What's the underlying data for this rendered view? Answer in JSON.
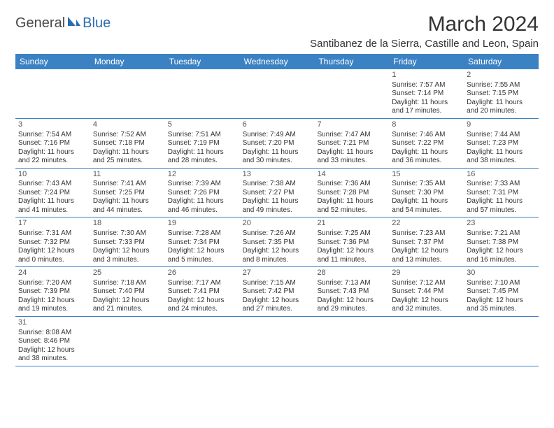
{
  "brand": {
    "general": "General",
    "blue": "Blue"
  },
  "header": {
    "title": "March 2024",
    "location": "Santibanez de la Sierra, Castille and Leon, Spain"
  },
  "colors": {
    "header_bg": "#3b82c4",
    "header_text": "#ffffff",
    "border": "#3b82c4",
    "text": "#333333"
  },
  "dayheads": [
    "Sunday",
    "Monday",
    "Tuesday",
    "Wednesday",
    "Thursday",
    "Friday",
    "Saturday"
  ],
  "weeks": [
    [
      null,
      null,
      null,
      null,
      null,
      {
        "num": "1",
        "sunrise": "Sunrise: 7:57 AM",
        "sunset": "Sunset: 7:14 PM",
        "daylight": "Daylight: 11 hours and 17 minutes."
      },
      {
        "num": "2",
        "sunrise": "Sunrise: 7:55 AM",
        "sunset": "Sunset: 7:15 PM",
        "daylight": "Daylight: 11 hours and 20 minutes."
      }
    ],
    [
      {
        "num": "3",
        "sunrise": "Sunrise: 7:54 AM",
        "sunset": "Sunset: 7:16 PM",
        "daylight": "Daylight: 11 hours and 22 minutes."
      },
      {
        "num": "4",
        "sunrise": "Sunrise: 7:52 AM",
        "sunset": "Sunset: 7:18 PM",
        "daylight": "Daylight: 11 hours and 25 minutes."
      },
      {
        "num": "5",
        "sunrise": "Sunrise: 7:51 AM",
        "sunset": "Sunset: 7:19 PM",
        "daylight": "Daylight: 11 hours and 28 minutes."
      },
      {
        "num": "6",
        "sunrise": "Sunrise: 7:49 AM",
        "sunset": "Sunset: 7:20 PM",
        "daylight": "Daylight: 11 hours and 30 minutes."
      },
      {
        "num": "7",
        "sunrise": "Sunrise: 7:47 AM",
        "sunset": "Sunset: 7:21 PM",
        "daylight": "Daylight: 11 hours and 33 minutes."
      },
      {
        "num": "8",
        "sunrise": "Sunrise: 7:46 AM",
        "sunset": "Sunset: 7:22 PM",
        "daylight": "Daylight: 11 hours and 36 minutes."
      },
      {
        "num": "9",
        "sunrise": "Sunrise: 7:44 AM",
        "sunset": "Sunset: 7:23 PM",
        "daylight": "Daylight: 11 hours and 38 minutes."
      }
    ],
    [
      {
        "num": "10",
        "sunrise": "Sunrise: 7:43 AM",
        "sunset": "Sunset: 7:24 PM",
        "daylight": "Daylight: 11 hours and 41 minutes."
      },
      {
        "num": "11",
        "sunrise": "Sunrise: 7:41 AM",
        "sunset": "Sunset: 7:25 PM",
        "daylight": "Daylight: 11 hours and 44 minutes."
      },
      {
        "num": "12",
        "sunrise": "Sunrise: 7:39 AM",
        "sunset": "Sunset: 7:26 PM",
        "daylight": "Daylight: 11 hours and 46 minutes."
      },
      {
        "num": "13",
        "sunrise": "Sunrise: 7:38 AM",
        "sunset": "Sunset: 7:27 PM",
        "daylight": "Daylight: 11 hours and 49 minutes."
      },
      {
        "num": "14",
        "sunrise": "Sunrise: 7:36 AM",
        "sunset": "Sunset: 7:28 PM",
        "daylight": "Daylight: 11 hours and 52 minutes."
      },
      {
        "num": "15",
        "sunrise": "Sunrise: 7:35 AM",
        "sunset": "Sunset: 7:30 PM",
        "daylight": "Daylight: 11 hours and 54 minutes."
      },
      {
        "num": "16",
        "sunrise": "Sunrise: 7:33 AM",
        "sunset": "Sunset: 7:31 PM",
        "daylight": "Daylight: 11 hours and 57 minutes."
      }
    ],
    [
      {
        "num": "17",
        "sunrise": "Sunrise: 7:31 AM",
        "sunset": "Sunset: 7:32 PM",
        "daylight": "Daylight: 12 hours and 0 minutes."
      },
      {
        "num": "18",
        "sunrise": "Sunrise: 7:30 AM",
        "sunset": "Sunset: 7:33 PM",
        "daylight": "Daylight: 12 hours and 3 minutes."
      },
      {
        "num": "19",
        "sunrise": "Sunrise: 7:28 AM",
        "sunset": "Sunset: 7:34 PM",
        "daylight": "Daylight: 12 hours and 5 minutes."
      },
      {
        "num": "20",
        "sunrise": "Sunrise: 7:26 AM",
        "sunset": "Sunset: 7:35 PM",
        "daylight": "Daylight: 12 hours and 8 minutes."
      },
      {
        "num": "21",
        "sunrise": "Sunrise: 7:25 AM",
        "sunset": "Sunset: 7:36 PM",
        "daylight": "Daylight: 12 hours and 11 minutes."
      },
      {
        "num": "22",
        "sunrise": "Sunrise: 7:23 AM",
        "sunset": "Sunset: 7:37 PM",
        "daylight": "Daylight: 12 hours and 13 minutes."
      },
      {
        "num": "23",
        "sunrise": "Sunrise: 7:21 AM",
        "sunset": "Sunset: 7:38 PM",
        "daylight": "Daylight: 12 hours and 16 minutes."
      }
    ],
    [
      {
        "num": "24",
        "sunrise": "Sunrise: 7:20 AM",
        "sunset": "Sunset: 7:39 PM",
        "daylight": "Daylight: 12 hours and 19 minutes."
      },
      {
        "num": "25",
        "sunrise": "Sunrise: 7:18 AM",
        "sunset": "Sunset: 7:40 PM",
        "daylight": "Daylight: 12 hours and 21 minutes."
      },
      {
        "num": "26",
        "sunrise": "Sunrise: 7:17 AM",
        "sunset": "Sunset: 7:41 PM",
        "daylight": "Daylight: 12 hours and 24 minutes."
      },
      {
        "num": "27",
        "sunrise": "Sunrise: 7:15 AM",
        "sunset": "Sunset: 7:42 PM",
        "daylight": "Daylight: 12 hours and 27 minutes."
      },
      {
        "num": "28",
        "sunrise": "Sunrise: 7:13 AM",
        "sunset": "Sunset: 7:43 PM",
        "daylight": "Daylight: 12 hours and 29 minutes."
      },
      {
        "num": "29",
        "sunrise": "Sunrise: 7:12 AM",
        "sunset": "Sunset: 7:44 PM",
        "daylight": "Daylight: 12 hours and 32 minutes."
      },
      {
        "num": "30",
        "sunrise": "Sunrise: 7:10 AM",
        "sunset": "Sunset: 7:45 PM",
        "daylight": "Daylight: 12 hours and 35 minutes."
      }
    ],
    [
      {
        "num": "31",
        "sunrise": "Sunrise: 8:08 AM",
        "sunset": "Sunset: 8:46 PM",
        "daylight": "Daylight: 12 hours and 38 minutes."
      },
      null,
      null,
      null,
      null,
      null,
      null
    ]
  ]
}
